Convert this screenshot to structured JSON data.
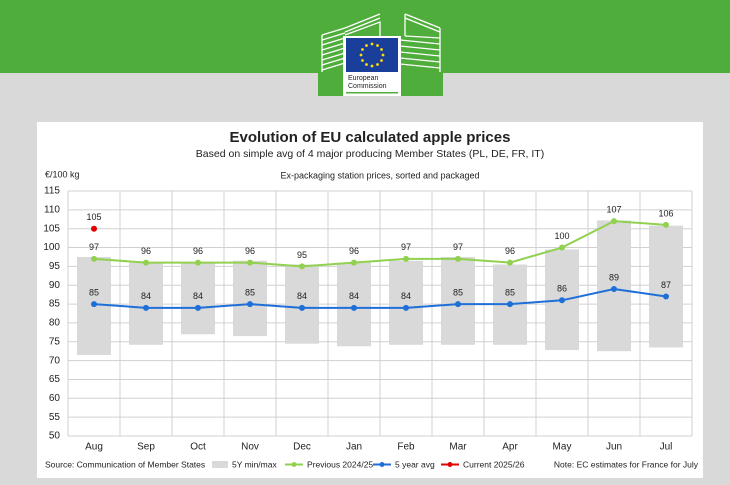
{
  "logo": {
    "line1": "European",
    "line2": "Commission"
  },
  "chart_data": {
    "type": "line",
    "title": "Evolution of EU calculated apple prices",
    "subtitle": "Based on simple avg of 4 major producing Member States (PL, DE, FR, IT)",
    "y_label": "€/100 kg",
    "annotation": "Ex-packaging station prices, sorted and packaged",
    "source": "Source: Communication of Member States",
    "note": "Note: EC estimates for France for July",
    "categories": [
      "Aug",
      "Sep",
      "Oct",
      "Nov",
      "Dec",
      "Jan",
      "Feb",
      "Mar",
      "Apr",
      "May",
      "Jun",
      "Jul"
    ],
    "ylim": [
      50,
      115
    ],
    "yticks": [
      50,
      55,
      60,
      65,
      70,
      75,
      80,
      85,
      90,
      95,
      100,
      105,
      110,
      115
    ],
    "grid": true,
    "range_series": {
      "name": "5Y min/max",
      "color": "#d9d9d9",
      "low": [
        71.5,
        74.2,
        77,
        76.5,
        74.5,
        73.8,
        74.2,
        74.2,
        74.2,
        72.8,
        72.5,
        73.5
      ],
      "high": [
        97.5,
        96,
        96,
        96.5,
        95.5,
        96,
        96.5,
        97.5,
        95.5,
        99.5,
        107.2,
        105.8
      ]
    },
    "series": [
      {
        "name": "Previous 2024/25",
        "color": "#92d050",
        "values": [
          97,
          96,
          96,
          96,
          95,
          96,
          97,
          97,
          96,
          100,
          107,
          106
        ]
      },
      {
        "name": "5 year avg",
        "color": "#1f6fd8",
        "values": [
          85,
          84,
          84,
          85,
          84,
          84,
          84,
          85,
          85,
          86,
          89,
          87
        ]
      },
      {
        "name": "Current 2025/26",
        "color": "#e00000",
        "values": [
          105,
          null,
          null,
          null,
          null,
          null,
          null,
          null,
          null,
          null,
          null,
          null
        ]
      }
    ]
  }
}
